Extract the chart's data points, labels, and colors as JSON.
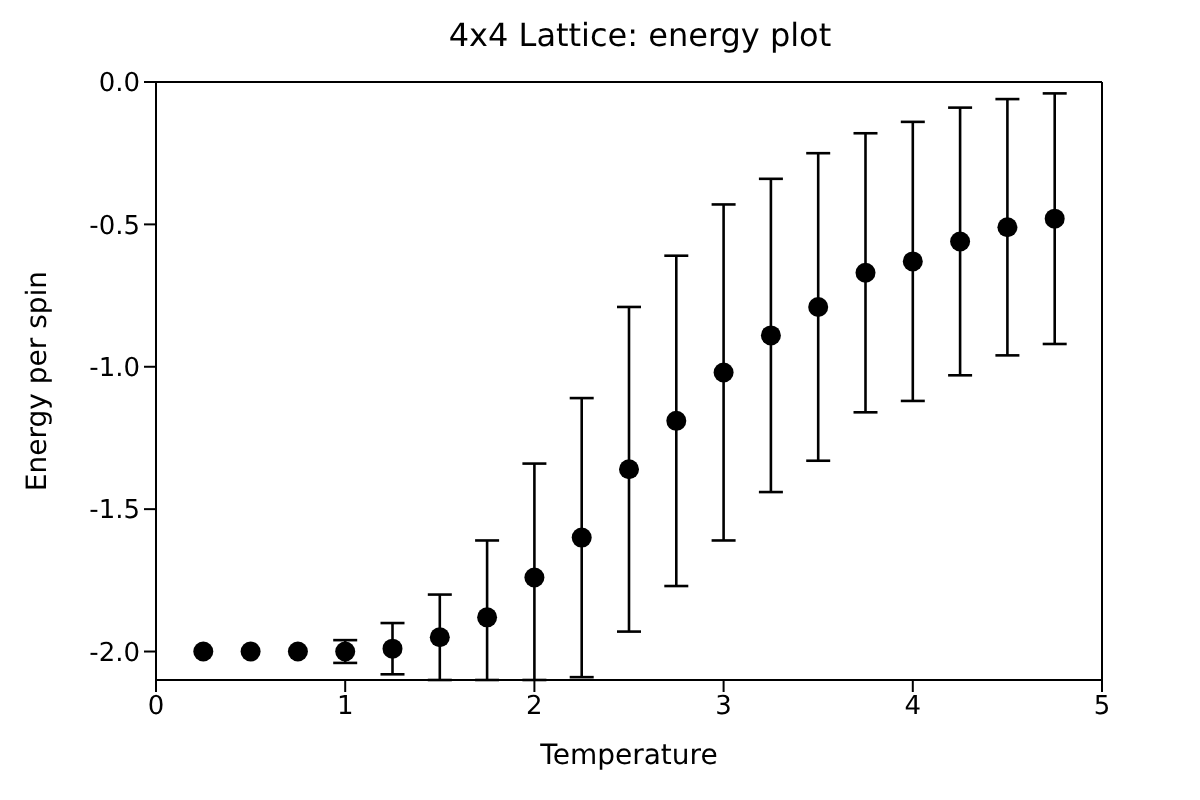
{
  "chart_data": {
    "type": "scatter",
    "title": "4x4 Lattice: energy plot",
    "xlabel": "Temperature",
    "ylabel": "Energy per spin",
    "x": [
      0.25,
      0.5,
      0.75,
      1.0,
      1.25,
      1.5,
      1.75,
      2.0,
      2.25,
      2.5,
      2.75,
      3.0,
      3.25,
      3.5,
      3.75,
      4.0,
      4.25,
      4.5,
      4.75
    ],
    "series": [
      {
        "color": "#000000",
        "values": [
          -2.0,
          -2.0,
          -2.0,
          -2.0,
          -1.99,
          -1.95,
          -1.88,
          -1.74,
          -1.6,
          -1.36,
          -1.19,
          -1.02,
          -0.89,
          -0.79,
          -0.67,
          -0.63,
          -0.56,
          -0.51,
          -0.48
        ],
        "errors": [
          null,
          null,
          null,
          0.04,
          0.09,
          0.15,
          [
            -2.1,
            -1.61
          ],
          [
            -2.1,
            -1.34
          ],
          0.49,
          0.57,
          0.58,
          0.59,
          0.55,
          0.54,
          0.49,
          0.49,
          0.47,
          0.45,
          0.44
        ]
      }
    ],
    "marker": "circle",
    "xlim": [
      0,
      5
    ],
    "xticks": [
      0,
      1,
      2,
      3,
      4,
      5
    ],
    "ylim": [
      -2.1,
      0
    ],
    "yticks": [
      {
        "value": -2,
        "label": "-2.0"
      },
      {
        "value": -1.5,
        "label": "-1.5"
      },
      {
        "value": -1,
        "label": "-1.0"
      },
      {
        "value": -0.5,
        "label": "-0.5"
      },
      {
        "value": 0,
        "label": "0.0"
      }
    ],
    "grid": false,
    "legend": false
  }
}
